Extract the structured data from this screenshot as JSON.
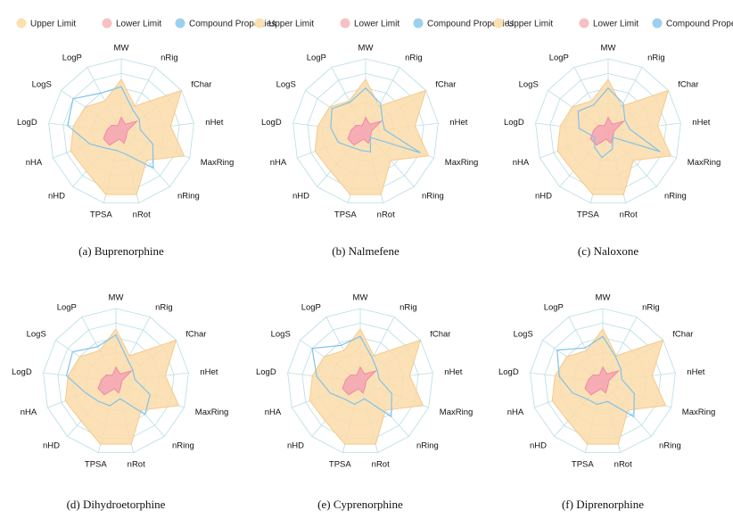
{
  "legend": {
    "entries": [
      {
        "name": "Upper Limit",
        "color": "#fbe0b0"
      },
      {
        "name": "Lower Limit",
        "color": "#f7c0c2"
      },
      {
        "name": "Compound Properties",
        "color": "#9cd0ee"
      }
    ]
  },
  "chart_data": {
    "type": "radar",
    "axes": [
      "MW",
      "nRig",
      "fChar",
      "nHet",
      "MaxRing",
      "nRing",
      "nRot",
      "TPSA",
      "nHD",
      "nHA",
      "LogD",
      "LogS",
      "LogP"
    ],
    "rlim": [
      0,
      5
    ],
    "grid": true,
    "colors": {
      "upper_fill": "#fbdcaa",
      "upper_stroke": "#f6c98a",
      "lower_fill": "#f4a3b4",
      "lower_stroke": "#ef8aa3",
      "compound_stroke": "#7ec3ea",
      "grid": "#b9dde4"
    },
    "upper_limit": [
      3.6,
      2.0,
      5.0,
      3.4,
      4.6,
      2.6,
      4.4,
      4.4,
      3.6,
      3.7,
      3.3,
      3.0,
      2.4
    ],
    "lower_limit": [
      1.0,
      0.6,
      1.3,
      0.4,
      0.4,
      0.5,
      0.8,
      0.5,
      1.2,
      1.3,
      1.0,
      0.8,
      0.5
    ],
    "panels": [
      {
        "caption": "(a) Buprenorphine",
        "compound": [
          3.1,
          1.7,
          1.5,
          1.3,
          2.3,
          3.3,
          1.6,
          1.3,
          1.5,
          2.3,
          3.7,
          4.0,
          3.0
        ]
      },
      {
        "caption": "(b) Nalmefene",
        "compound": [
          3.0,
          2.2,
          1.4,
          1.3,
          4.0,
          0.5,
          1.4,
          1.3,
          1.4,
          2.0,
          2.4,
          2.8,
          2.3
        ]
      },
      {
        "caption": "(c) Naloxone",
        "compound": [
          3.0,
          2.2,
          1.4,
          1.5,
          3.8,
          0.5,
          1.2,
          1.8,
          1.4,
          1.0,
          2.0,
          2.5,
          2.1
        ]
      },
      {
        "caption": "(d) Dihydroetorphine",
        "compound": [
          3.2,
          1.7,
          1.4,
          1.3,
          2.5,
          3.0,
          1.2,
          1.7,
          1.8,
          2.2,
          3.4,
          3.6,
          2.7
        ]
      },
      {
        "caption": "(e) Cyprenorphine",
        "compound": [
          3.1,
          1.8,
          1.4,
          1.3,
          2.3,
          3.2,
          1.2,
          1.6,
          1.6,
          2.2,
          3.0,
          4.0,
          2.8
        ]
      },
      {
        "caption": "(f) Diprenorphine",
        "compound": [
          3.1,
          1.9,
          1.5,
          1.3,
          2.3,
          3.2,
          1.4,
          1.6,
          1.6,
          2.2,
          3.0,
          3.8,
          2.6
        ]
      }
    ]
  }
}
